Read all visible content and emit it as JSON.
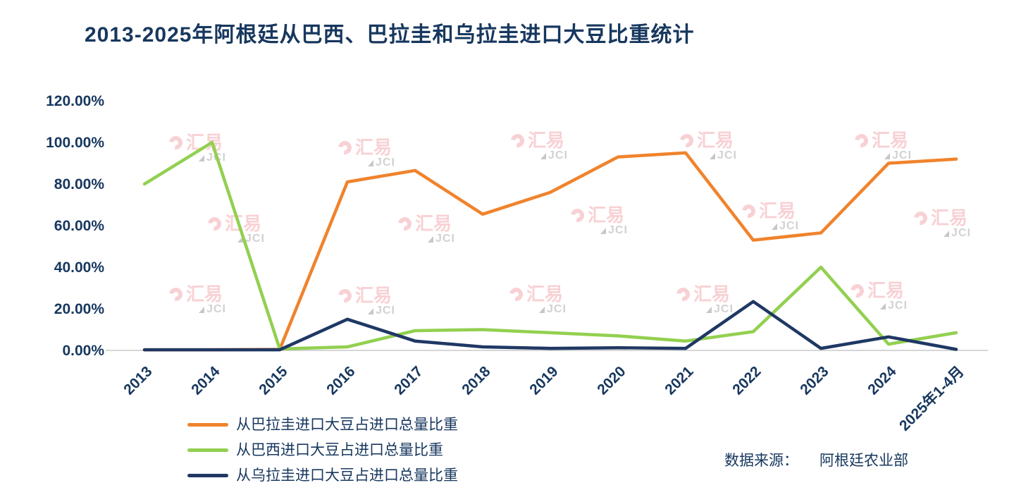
{
  "watermark": {
    "logo_text": "汇易",
    "sub_text": "JCI"
  },
  "source": {
    "label": "数据来源：",
    "value": "阿根廷农业部"
  },
  "colors": {
    "title_text": "#17375E",
    "axis_text": "#17375E",
    "axis_line": "#C9C9C9",
    "paraguay": "#F0832C",
    "brazil": "#92D050",
    "uruguay": "#1F3864",
    "watermark_pink": "#F3ADB2",
    "watermark_gray": "#ADADAD"
  },
  "chart_data": {
    "type": "line",
    "title": "2013-2025年阿根廷从巴西、巴拉圭和乌拉圭进口大豆比重统计",
    "categories": [
      "2013",
      "2014",
      "2015",
      "2016",
      "2017",
      "2018",
      "2019",
      "2020",
      "2021",
      "2022",
      "2023",
      "2024",
      "2025年1-4月"
    ],
    "series": [
      {
        "key": "paraguay",
        "name": "从巴拉圭进口大豆占进口总量比重",
        "color": "#F0832C",
        "values": [
          0.3,
          0.3,
          0.5,
          81,
          86.5,
          65.5,
          76,
          93,
          95,
          53,
          56.5,
          90,
          92
        ]
      },
      {
        "key": "brazil",
        "name": "从巴西进口大豆占进口总量比重",
        "color": "#92D050",
        "values": [
          80,
          100,
          0.7,
          1.7,
          9.5,
          10,
          8.5,
          7,
          4.5,
          9,
          40,
          3,
          8.5
        ]
      },
      {
        "key": "uruguay",
        "name": "从乌拉圭进口大豆占进口总量比重",
        "color": "#1F3864",
        "values": [
          0.3,
          0.3,
          0.3,
          15,
          4.5,
          1.7,
          1,
          1.3,
          1,
          23.5,
          1,
          6.5,
          0.5
        ]
      }
    ],
    "y_ticks": [
      "0.00%",
      "20.00%",
      "40.00%",
      "60.00%",
      "80.00%",
      "100.00%",
      "120.00%"
    ],
    "ylim": [
      0,
      120
    ],
    "xlabel": "",
    "ylabel": "",
    "grid": false,
    "legend_position": "bottom-left"
  }
}
